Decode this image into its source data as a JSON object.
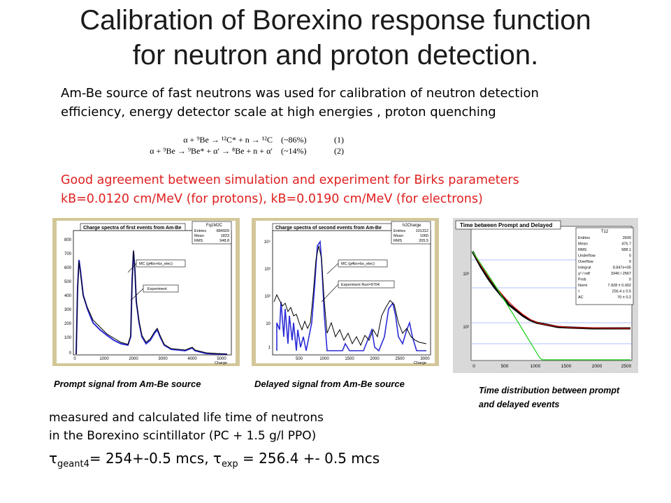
{
  "title_line1": "Calibration  of Borexino response function",
  "title_line2": "for neutron and proton  detection.",
  "intro_line1": "Am-Be source of fast neutrons  was used for calibration of neutron detection",
  "intro_line2": "efficiency, energy detector scale at high energies , proton quenching",
  "reactions": [
    {
      "formula": "α + ⁹Be → ¹²C* + n → ¹²C",
      "fraction": "(~86%)",
      "number": "(1)"
    },
    {
      "formula": "α + ⁹Be → ⁹Be* + α′ → ⁸Be + n + α′",
      "fraction": "(~14%)",
      "number": "(2)"
    }
  ],
  "agreement_line1": "Good agreement between simulation and experiment for Birks parameters",
  "agreement_line2": "kB=0.0120 cm/MeV (for protons), kB=0.0190 cm/MeV (for electrons)",
  "colors": {
    "accent_red": "#e02020",
    "panel_bg": "#d3c79a",
    "data_black": "#000000",
    "mc_blue": "#2b2bd6",
    "fit_red": "#d01010",
    "fit_green": "#18d018"
  },
  "plot1": {
    "title": "Charge spectra of first events from Am-Be",
    "stats_name": "Fq1M2C",
    "stats": [
      {
        "k": "Entries",
        "v": "884929"
      },
      {
        "k": "Mean",
        "v": "1823"
      },
      {
        "k": "RMS",
        "v": "948.8"
      }
    ],
    "legend_mc": "MC (g4bx+bx_elec)",
    "legend_exp": "Experiment",
    "xlabel": "Charge",
    "yticks": [
      "800",
      "700",
      "600",
      "500",
      "400",
      "300",
      "200",
      "100",
      "0"
    ],
    "xticks": [
      "0",
      "1000",
      "2000",
      "3000",
      "4000",
      "5000"
    ],
    "caption": "Prompt signal from Am-Be source"
  },
  "plot2": {
    "title": "Charge spectra of second events from Am-Be",
    "stats_name": "h2Charge",
    "stats": [
      {
        "k": "Entries",
        "v": "101312"
      },
      {
        "k": "Mean",
        "v": "1060"
      },
      {
        "k": "RMS",
        "v": "205.5"
      }
    ],
    "legend_mc": "MC (g4bx+bx_elec)",
    "legend_exp": "Experiment Run=9704",
    "xlabel": "Charge",
    "yticks": [
      "10⁴",
      "10³",
      "10²",
      "10",
      "1"
    ],
    "xticks": [
      "500",
      "1000",
      "1500",
      "2000",
      "2500",
      "3000"
    ],
    "caption": "Delayed signal from Am-Be source"
  },
  "plot3": {
    "title": "Time between Prompt and Delayed",
    "stats_name": "T12",
    "stats": [
      {
        "k": "Entries",
        "v": "2600"
      },
      {
        "k": "Mean",
        "v": "476.7"
      },
      {
        "k": "RMS",
        "v": "588.1"
      },
      {
        "k": "Underflow",
        "v": "0"
      },
      {
        "k": "Overflow",
        "v": "0"
      },
      {
        "k": "Integral",
        "v": "8.847e+05"
      },
      {
        "k": "χ² / ndf",
        "v": "3340 / 2567"
      },
      {
        "k": "Prob",
        "v": "0"
      },
      {
        "k": "Norm",
        "v": "7.928 ± 0.002"
      },
      {
        "k": "τ",
        "v": "256.4 ± 0.5"
      },
      {
        "k": "AC",
        "v": "70 ± 0.2"
      }
    ],
    "yticks": [
      "10³",
      "10²"
    ],
    "xticks": [
      "0",
      "500",
      "1000",
      "1500",
      "2000",
      "2500"
    ],
    "caption_line1": "Time distribution between prompt",
    "caption_line2": "and delayed events"
  },
  "bottom": {
    "line1": "measured and calculated life time of neutrons",
    "line2": "in the Borexino scintillator (PC + 1.5 g/l PPO)",
    "tau_symbol": "τ",
    "sub_geant": "geant4",
    "value_geant": "= 254+-0.5 mcs, ",
    "sub_exp": "exp",
    "value_exp": " = 256.4 +- 0.5 mcs"
  }
}
